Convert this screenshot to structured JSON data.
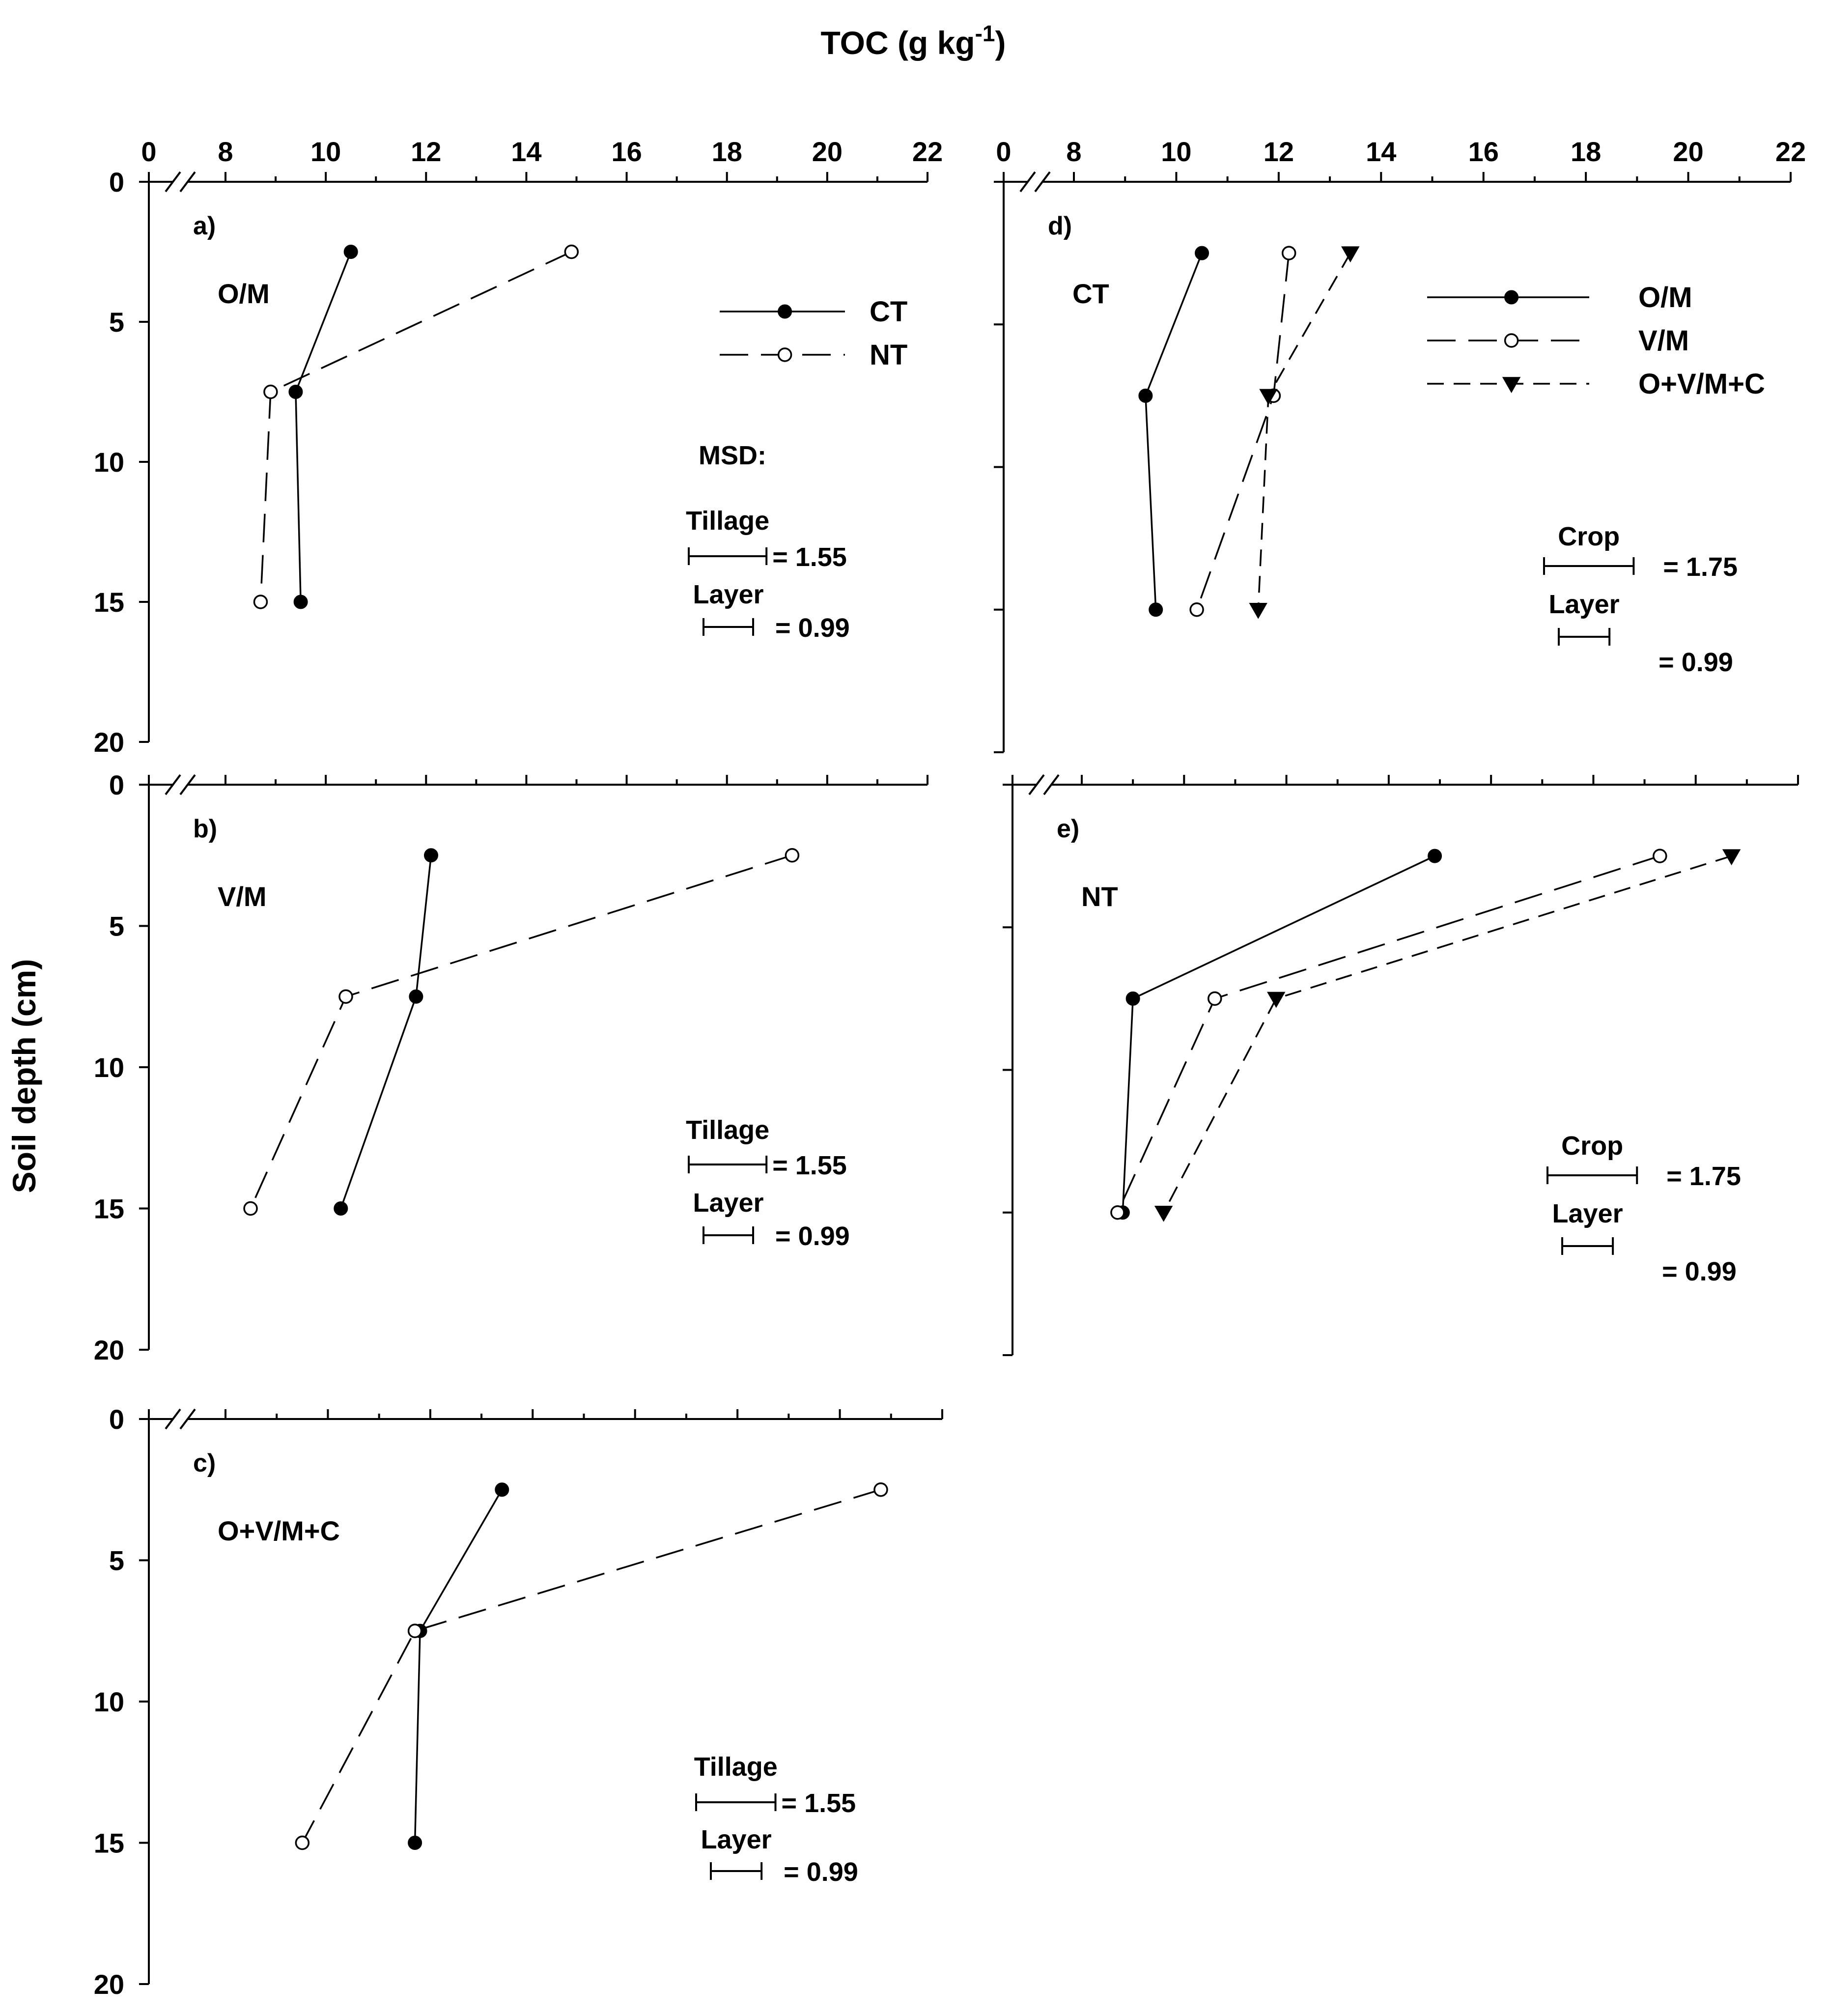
{
  "figure": {
    "x_axis_title": "TOC (g kg",
    "x_axis_title_sup": "-1",
    "x_axis_title_close": ")",
    "y_axis_title": "Soil depth (cm)",
    "x_tick_labels": [
      "0",
      "8",
      "10",
      "12",
      "14",
      "16",
      "18",
      "20",
      "22"
    ],
    "y_tick_labels": [
      "0",
      "5",
      "10",
      "15",
      "20"
    ]
  },
  "chart_data": [
    {
      "id": "a",
      "type": "line",
      "panel_label": "a)",
      "panel_name": "O/M",
      "xlabel": "TOC (g kg-1)",
      "ylabel": "Soil depth (cm)",
      "xlim": [
        7,
        22
      ],
      "xaxis_break": "0 // 8",
      "ylim": [
        0,
        20
      ],
      "y_inverted": true,
      "series": [
        {
          "name": "CT",
          "marker": "filled-circle",
          "line": "solid",
          "x": [
            10.5,
            9.4,
            9.5
          ],
          "y": [
            2.5,
            7.5,
            15
          ]
        },
        {
          "name": "NT",
          "marker": "open-circle",
          "line": "long-dash",
          "x": [
            14.9,
            8.9,
            8.7
          ],
          "y": [
            2.5,
            7.5,
            15
          ]
        }
      ],
      "legend": [
        {
          "label": "CT"
        },
        {
          "label": "NT"
        }
      ],
      "msd": {
        "title": "MSD:",
        "rows": [
          {
            "label": "Tillage",
            "value": "= 1.55",
            "width": 1.55
          },
          {
            "label": "Layer",
            "value": "= 0.99",
            "width": 0.99
          }
        ]
      }
    },
    {
      "id": "b",
      "type": "line",
      "panel_label": "b)",
      "panel_name": "V/M",
      "xlabel": "TOC (g kg-1)",
      "ylabel": "Soil depth (cm)",
      "xlim": [
        7,
        22
      ],
      "ylim": [
        0,
        20
      ],
      "y_inverted": true,
      "series": [
        {
          "name": "CT",
          "marker": "filled-circle",
          "line": "solid",
          "x": [
            12.1,
            11.8,
            10.3
          ],
          "y": [
            2.5,
            7.5,
            15
          ]
        },
        {
          "name": "NT",
          "marker": "open-circle",
          "line": "long-dash",
          "x": [
            19.3,
            10.4,
            8.5
          ],
          "y": [
            2.5,
            7.5,
            15
          ]
        }
      ],
      "msd": {
        "rows": [
          {
            "label": "Tillage",
            "value": "= 1.55",
            "width": 1.55
          },
          {
            "label": "Layer",
            "value": "= 0.99",
            "width": 0.99
          }
        ]
      }
    },
    {
      "id": "c",
      "type": "line",
      "panel_label": "c)",
      "panel_name": "O+V/M+C",
      "xlabel": "TOC (g kg-1)",
      "ylabel": "Soil depth (cm)",
      "xlim": [
        7,
        22
      ],
      "ylim": [
        0,
        20
      ],
      "y_inverted": true,
      "series": [
        {
          "name": "CT",
          "marker": "filled-circle",
          "line": "solid",
          "x": [
            13.4,
            11.8,
            11.7
          ],
          "y": [
            2.5,
            7.5,
            15
          ]
        },
        {
          "name": "NT",
          "marker": "open-circle",
          "line": "long-dash",
          "x": [
            20.8,
            11.7,
            9.5
          ],
          "y": [
            2.5,
            7.5,
            15
          ]
        }
      ],
      "msd": {
        "rows": [
          {
            "label": "Tillage",
            "value": "= 1.55",
            "width": 1.55
          },
          {
            "label": "Layer",
            "value": "= 0.99",
            "width": 0.99
          }
        ]
      }
    },
    {
      "id": "d",
      "type": "line",
      "panel_label": "d)",
      "panel_name": "CT",
      "xlabel": "TOC (g kg-1)",
      "ylabel": "Soil depth (cm)",
      "xlim": [
        7,
        22
      ],
      "ylim": [
        0,
        20
      ],
      "y_inverted": true,
      "series": [
        {
          "name": "O/M",
          "marker": "filled-circle",
          "line": "solid",
          "x": [
            10.5,
            9.4,
            9.6
          ],
          "y": [
            2.5,
            7.5,
            15
          ]
        },
        {
          "name": "V/M",
          "marker": "open-circle",
          "line": "long-dash",
          "x": [
            12.2,
            11.9,
            10.4
          ],
          "y": [
            2.5,
            7.5,
            15
          ]
        },
        {
          "name": "O+V/M+C",
          "marker": "filled-triangle-down",
          "line": "short-dash",
          "x": [
            13.4,
            11.8,
            11.6
          ],
          "y": [
            2.5,
            7.5,
            15
          ]
        }
      ],
      "legend": [
        {
          "label": "O/M"
        },
        {
          "label": "V/M"
        },
        {
          "label": "O+V/M+C"
        }
      ],
      "msd": {
        "rows": [
          {
            "label": "Crop",
            "value": "= 1.75",
            "width": 1.75
          },
          {
            "label": "Layer",
            "value": "= 0.99",
            "width": 0.99
          }
        ]
      }
    },
    {
      "id": "e",
      "type": "line",
      "panel_label": "e)",
      "panel_name": "NT",
      "xlabel": "TOC (g kg-1)",
      "ylabel": "Soil depth (cm)",
      "xlim": [
        7,
        22
      ],
      "ylim": [
        0,
        20
      ],
      "y_inverted": true,
      "series": [
        {
          "name": "O/M",
          "marker": "filled-circle",
          "line": "solid",
          "x": [
            14.9,
            9.0,
            8.8
          ],
          "y": [
            2.5,
            7.5,
            15
          ]
        },
        {
          "name": "V/M",
          "marker": "open-circle",
          "line": "long-dash",
          "x": [
            19.3,
            10.6,
            8.7
          ],
          "y": [
            2.5,
            7.5,
            15
          ]
        },
        {
          "name": "O+V/M+C",
          "marker": "filled-triangle-down",
          "line": "short-dash",
          "x": [
            20.7,
            11.8,
            9.6
          ],
          "y": [
            2.5,
            7.5,
            15
          ]
        }
      ],
      "msd": {
        "rows": [
          {
            "label": "Crop",
            "value": "= 1.75",
            "width": 1.75
          },
          {
            "label": "Layer",
            "value": "= 0.99",
            "width": 0.99
          }
        ]
      }
    }
  ]
}
